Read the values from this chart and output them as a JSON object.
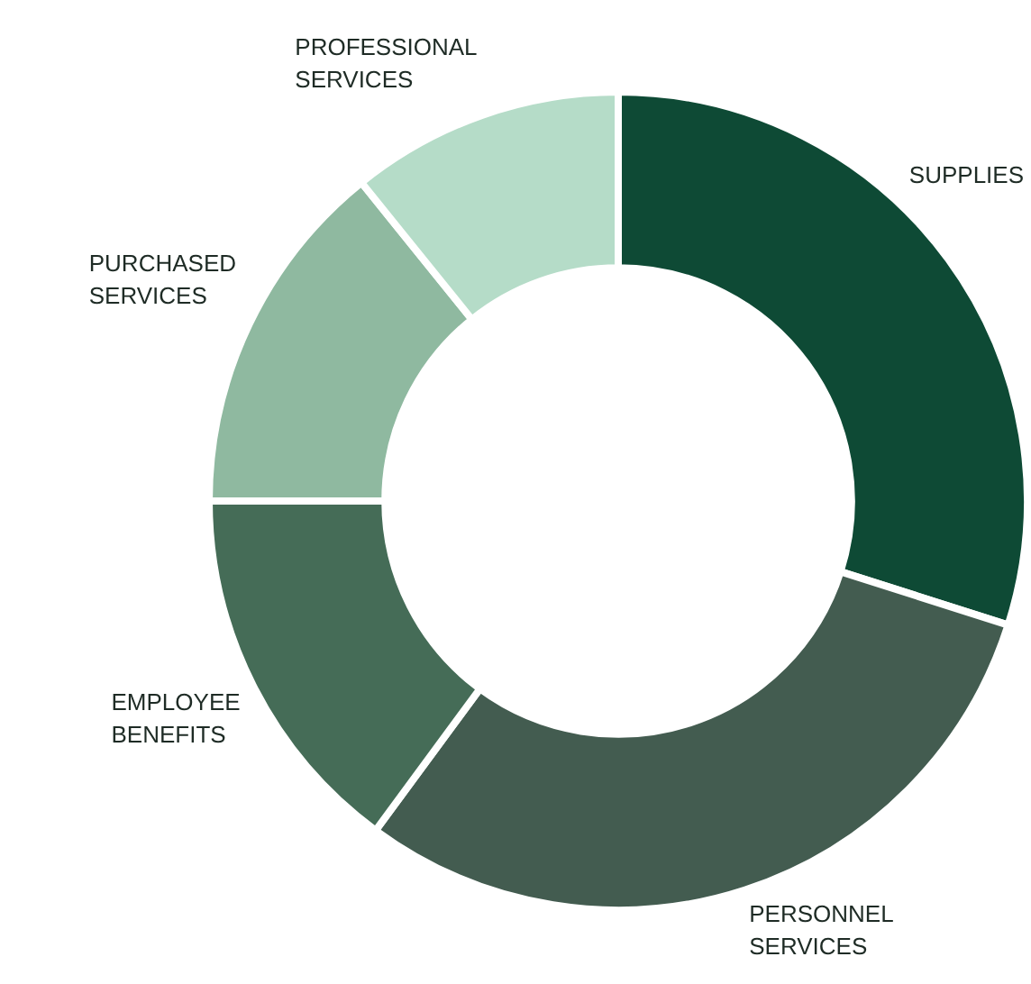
{
  "chart_data": {
    "type": "donut",
    "categories": [
      "SUPPLIES",
      "PERSONNEL SERVICES",
      "EMPLOYEE BENEFITS",
      "PURCHASED SERVICES",
      "PROFESSIONAL SERVICES"
    ],
    "values": [
      29.9,
      30.2,
      14.9,
      14.2,
      10.8
    ],
    "colors": [
      "#0e4a35",
      "#435c50",
      "#456c57",
      "#8fb9a0",
      "#b5dcc8"
    ],
    "legend": false
  }
}
